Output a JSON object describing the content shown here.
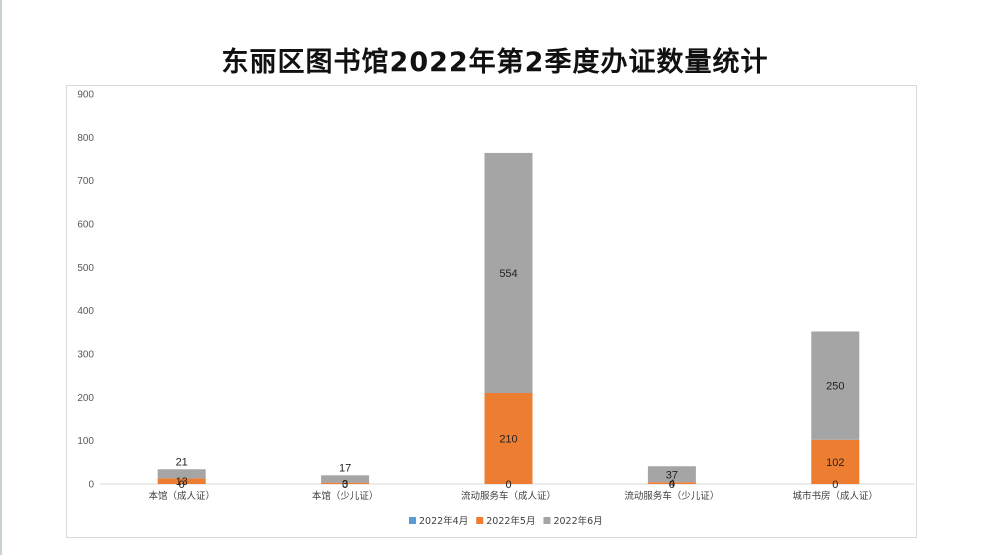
{
  "chart_data": {
    "type": "bar",
    "stacked": true,
    "title": "东丽区图书馆2022年第2季度办证数量统计",
    "categories": [
      "本馆（成人证）",
      "本馆（少儿证）",
      "流动服务车（成人证）",
      "流动服务车（少儿证）",
      "城市书房（成人证）"
    ],
    "series": [
      {
        "name": "2022年4月",
        "color": "#5b9bd5",
        "values": [
          0,
          0,
          0,
          0,
          0
        ]
      },
      {
        "name": "2022年5月",
        "color": "#ed7d31",
        "values": [
          13,
          3,
          210,
          4,
          102
        ]
      },
      {
        "name": "2022年6月",
        "color": "#a5a5a5",
        "values": [
          21,
          17,
          554,
          37,
          250
        ]
      }
    ],
    "ylim": [
      0,
      900
    ],
    "yticks": [
      0,
      100,
      200,
      300,
      400,
      500,
      600,
      700,
      800,
      900
    ],
    "legend_position": "bottom",
    "grid": false
  }
}
